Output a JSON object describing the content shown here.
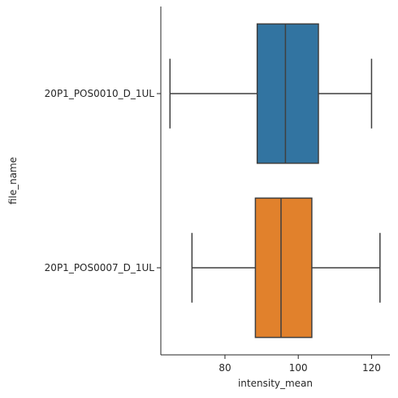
{
  "chart_data": {
    "type": "boxplot",
    "orientation": "horizontal",
    "title": "",
    "xlabel": "intensity_mean",
    "ylabel": "file_name",
    "xlim": [
      62.5,
      125
    ],
    "xticks": [
      80,
      100,
      120
    ],
    "grid": false,
    "legend": "none",
    "categories": [
      "20P1_POS0010_D_1UL",
      "20P1_POS0007_D_1UL"
    ],
    "series": [
      {
        "category": "20P1_POS0010_D_1UL",
        "color": "#3274a1",
        "whisker_low": 65.0,
        "q1": 88.8,
        "median": 96.5,
        "q3": 105.5,
        "whisker_high": 120.0
      },
      {
        "category": "20P1_POS0007_D_1UL",
        "color": "#e1812c",
        "whisker_low": 71.0,
        "q1": 88.3,
        "median": 95.3,
        "q3": 103.7,
        "whisker_high": 122.3
      }
    ],
    "line_color": "#3f3f3f"
  }
}
